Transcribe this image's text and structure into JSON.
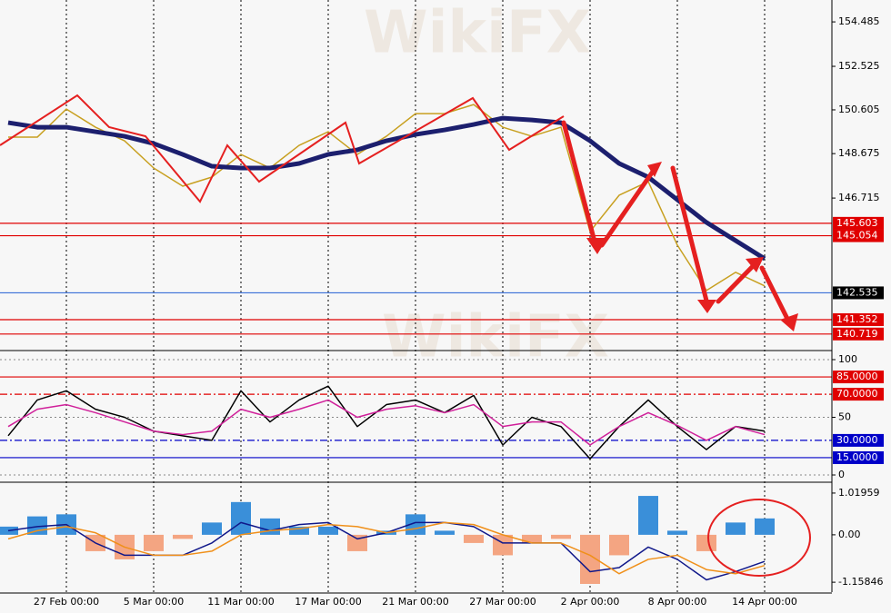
{
  "watermark": "WikiFX",
  "chart_data": [
    {
      "type": "line",
      "ylim": [
        140.03,
        155.45
      ],
      "yticks": [
        154.485,
        152.525,
        150.605,
        148.675,
        146.715
      ],
      "levels": [
        {
          "value": 145.603,
          "color": "#e00000"
        },
        {
          "value": 145.054,
          "color": "#e00000"
        },
        {
          "value": 142.535,
          "color": "#000000"
        },
        {
          "value": 141.352,
          "color": "#e00000"
        },
        {
          "value": 140.719,
          "color": "#e00000"
        }
      ],
      "series": [
        {
          "color": "#c8a020",
          "values": [
            149.4,
            149.4,
            150.64,
            149.84,
            149.24,
            148.04,
            147.24,
            147.64,
            148.64,
            148.04,
            149.04,
            149.64,
            148.64,
            149.44,
            150.44,
            150.44,
            150.84,
            149.84,
            149.44,
            149.84,
            145.24,
            146.84,
            147.44,
            144.64,
            142.64,
            143.44,
            142.84
          ]
        },
        {
          "color": "#1c1f6e",
          "values": [
            150.04,
            149.84,
            149.84,
            149.64,
            149.44,
            149.12,
            148.64,
            148.12,
            148.04,
            148.04,
            148.24,
            148.64,
            148.84,
            149.24,
            149.52,
            149.72,
            149.96,
            150.24,
            150.16,
            150.04,
            149.24,
            148.24,
            147.64,
            146.64,
            145.64,
            144.84,
            144.04
          ]
        }
      ]
    },
    {
      "type": "line",
      "ylim": [
        -5.5,
        106.3
      ],
      "yticks": [
        100,
        50,
        0
      ],
      "levels": [
        {
          "value": 85,
          "label": "85.0000",
          "color": "#e00000",
          "dash": "none"
        },
        {
          "value": 70,
          "label": "70.0000",
          "color": "#e00000",
          "dash": "8 3 2 3"
        },
        {
          "value": 30,
          "label": "30.0000",
          "color": "#0000c8",
          "dash": "8 3 2 3"
        },
        {
          "value": 15,
          "label": "15.0000",
          "color": "#0000c8",
          "dash": "none"
        }
      ],
      "series": [
        {
          "color": "#000000",
          "values": [
            34,
            65,
            73,
            57,
            50,
            38,
            34,
            30,
            73,
            46,
            65,
            77,
            42,
            61,
            65,
            54,
            69,
            26,
            50,
            42,
            14,
            42,
            65,
            42,
            22,
            42,
            38
          ]
        },
        {
          "color": "#d0209a",
          "values": [
            42,
            57,
            61,
            54,
            46,
            38,
            35,
            38,
            57,
            50,
            57,
            65,
            50,
            57,
            60,
            54,
            61,
            42,
            46,
            46,
            26,
            42,
            54,
            43,
            30,
            42,
            35
          ]
        }
      ]
    },
    {
      "type": "combo",
      "ylim": [
        -1.4,
        1.24
      ],
      "yticks": [
        1.01959,
        {
          "value": 0,
          "label": "0.00"
        },
        -1.15846
      ],
      "categories": [
        null,
        null,
        "27 Feb 00:00",
        null,
        null,
        "5 Mar 00:00",
        null,
        null,
        "11 Mar 00:00",
        null,
        null,
        "17 Mar 00:00",
        null,
        null,
        "21 Mar 00:00",
        null,
        null,
        "27 Mar 00:00",
        null,
        null,
        "2 Apr 00:00",
        null,
        null,
        "8 Apr 00:00",
        null,
        null,
        "14 Apr 00:00"
      ],
      "series": [
        {
          "type": "bar",
          "color": "#3a8fd9",
          "negative_color": "#f4a582",
          "values": [
            0.2,
            0.45,
            0.5,
            -0.4,
            -0.6,
            -0.4,
            -0.1,
            0.3,
            0.8,
            0.4,
            0.2,
            0.2,
            -0.4,
            0.1,
            0.5,
            0.1,
            -0.2,
            -0.5,
            -0.2,
            -0.1,
            -1.2,
            -0.5,
            0.95,
            0.1,
            -0.4,
            0.3,
            0.4
          ]
        },
        {
          "type": "line",
          "color": "#10188a",
          "values": [
            0.1,
            0.2,
            0.25,
            -0.2,
            -0.5,
            -0.5,
            -0.5,
            -0.2,
            0.3,
            0.1,
            0.25,
            0.3,
            -0.1,
            0.05,
            0.3,
            0.3,
            0.2,
            -0.2,
            -0.2,
            -0.2,
            -0.9,
            -0.8,
            -0.3,
            -0.6,
            -1.1,
            -0.9,
            -0.65
          ]
        },
        {
          "type": "line",
          "color": "#f0901a",
          "values": [
            -0.1,
            0.1,
            0.2,
            0.05,
            -0.3,
            -0.5,
            -0.5,
            -0.4,
            0.0,
            0.1,
            0.15,
            0.25,
            0.2,
            0.05,
            0.15,
            0.3,
            0.25,
            0.0,
            -0.2,
            -0.2,
            -0.5,
            -0.95,
            -0.6,
            -0.5,
            -0.85,
            -0.95,
            -0.75
          ]
        }
      ]
    }
  ]
}
